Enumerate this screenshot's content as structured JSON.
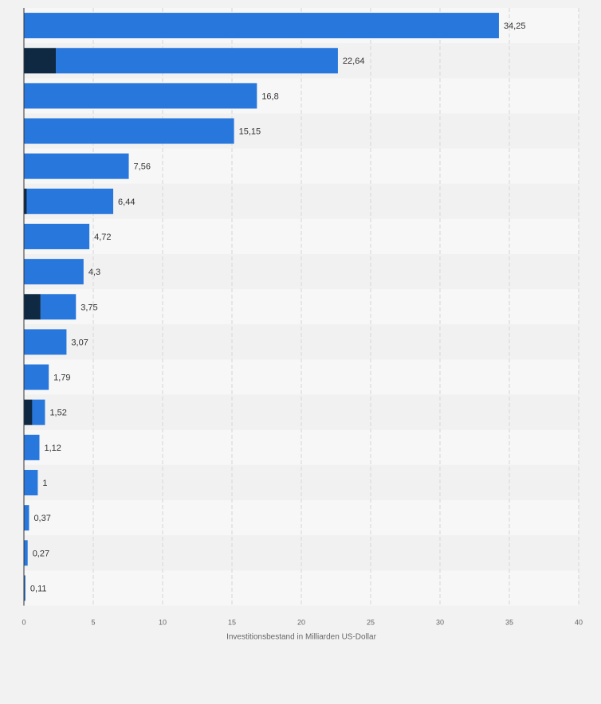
{
  "chart_data": {
    "type": "bar",
    "orientation": "horizontal",
    "stacked": true,
    "categories": [
      "",
      "",
      "",
      "",
      "",
      "",
      "",
      "",
      "",
      "",
      "",
      "",
      "",
      "",
      "",
      "",
      ""
    ],
    "series": [
      {
        "name": "",
        "color": "#0f2943",
        "values": [
          0,
          2.3,
          0,
          0,
          0,
          0.2,
          0,
          0,
          1.2,
          0,
          0,
          0.6,
          0,
          0,
          0,
          0,
          0.05
        ]
      },
      {
        "name": "",
        "color": "#2877dd",
        "values": [
          34.25,
          20.34,
          16.8,
          15.15,
          7.56,
          6.24,
          4.72,
          4.3,
          2.55,
          3.07,
          1.79,
          0.92,
          1.12,
          1,
          0.37,
          0.27,
          0.06
        ]
      }
    ],
    "total_labels": [
      "34,25",
      "22,64",
      "16,8",
      "15,15",
      "7,56",
      "6,44",
      "4,72",
      "4,3",
      "3,75",
      "3,07",
      "1,79",
      "1,52",
      "1,12",
      "1",
      "0,37",
      "0,27",
      "0,11"
    ],
    "xlim": [
      0,
      40
    ],
    "xticks": [
      0,
      5,
      10,
      15,
      20,
      25,
      30,
      35,
      40
    ],
    "xtick_labels": [
      "0",
      "5",
      "10",
      "15",
      "20",
      "25",
      "30",
      "35",
      "40"
    ],
    "xlabel": "Investitionsbestand in Milliarden US-Dollar",
    "ylabel": "",
    "grid": true
  },
  "colors": {
    "background": "#f2f2f2",
    "band_light": "#f7f7f7",
    "band_dark": "#f1f1f1",
    "gridline": "#d6d6d6",
    "axis": "#333333",
    "label_text": "#333333",
    "tick_text": "#666666"
  }
}
